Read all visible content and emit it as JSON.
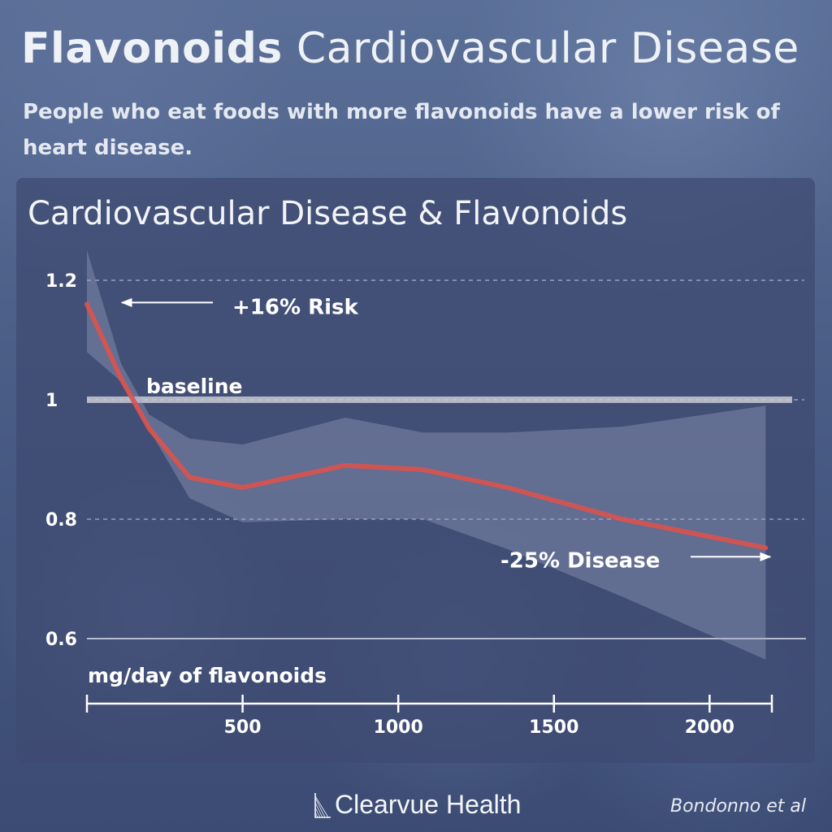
{
  "header": {
    "title_bold": "Flavonoids",
    "title_rest": "Cardiovascular Disease",
    "subtitle": "People who eat foods with more flavonoids have a lower risk of heart disease."
  },
  "chart_data": {
    "type": "line",
    "title": "Cardiovascular Disease & Flavonoids",
    "xlabel": "mg/day of flavonoids",
    "ylabel": "",
    "xlim": [
      0,
      2200
    ],
    "ylim": [
      0.6,
      1.2
    ],
    "xticks": [
      500,
      1000,
      1500,
      2000
    ],
    "yticks": [
      0.6,
      0.8,
      1.0,
      1.2
    ],
    "ytick_labels": [
      "0.6",
      "0.8",
      "1",
      "1.2"
    ],
    "grid": "dashed horizontal",
    "baseline": {
      "value": 1.0,
      "label": "baseline"
    },
    "series": [
      {
        "x": [
          0,
          110,
          200,
          330,
          500,
          830,
          1080,
          1350,
          1720,
          2180
        ],
        "y": [
          1.16,
          1.035,
          0.952,
          0.87,
          0.853,
          0.89,
          0.883,
          0.853,
          0.8,
          0.752
        ],
        "lower": [
          1.08,
          1.03,
          0.95,
          0.835,
          0.795,
          0.8,
          0.8,
          0.75,
          0.67,
          0.565
        ],
        "upper": [
          1.25,
          1.06,
          0.975,
          0.935,
          0.925,
          0.97,
          0.945,
          0.945,
          0.955,
          0.99
        ],
        "color": "#d9534f",
        "band_color": "#9aa3c2"
      }
    ],
    "annotations": [
      {
        "text": "+16% Risk",
        "x": 100,
        "y": 1.16,
        "arrow": "left"
      },
      {
        "text": "-25% Disease",
        "x": 2180,
        "y": 0.752,
        "arrow": "right"
      }
    ]
  },
  "footer": {
    "brand": "Clearvue Health",
    "citation": "Bondonno et al"
  }
}
